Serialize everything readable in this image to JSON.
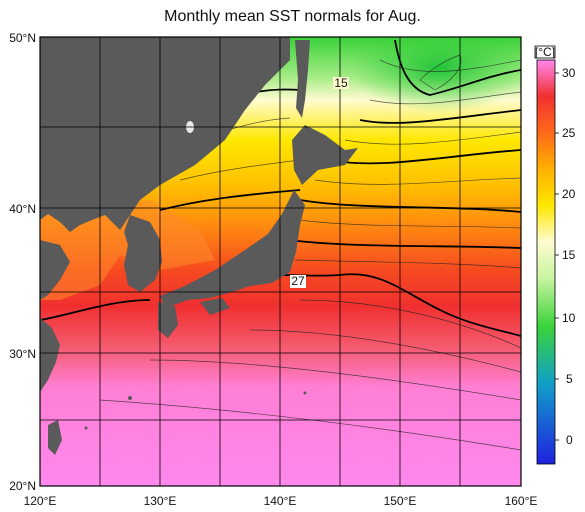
{
  "title": "Monthly mean SST normals for Aug.",
  "lat_labels": [
    "50°N",
    "40°N",
    "30°N",
    "20°N"
  ],
  "lon_labels": [
    "120°E",
    "130°E",
    "140°E",
    "150°E",
    "160°E"
  ],
  "colorbar": {
    "unit": "[°C]",
    "ticks": [
      "30",
      "25",
      "20",
      "15",
      "10",
      "5",
      "0"
    ],
    "range": [
      -2,
      31
    ]
  },
  "contour_labels": [
    "15",
    "27"
  ],
  "colors": {
    "land": "#5a5a5a",
    "grid": "#000000",
    "sst_30": "#ff88ee",
    "sst_27": "#f03030",
    "sst_25": "#ff6a1a",
    "sst_22": "#ffb000",
    "sst_20": "#ffe800",
    "sst_17": "#fffbd0",
    "sst_15": "#c8f5a0",
    "sst_10": "#3ad23a",
    "sst_5": "#10a0c8",
    "sst_0": "#2020e0"
  }
}
